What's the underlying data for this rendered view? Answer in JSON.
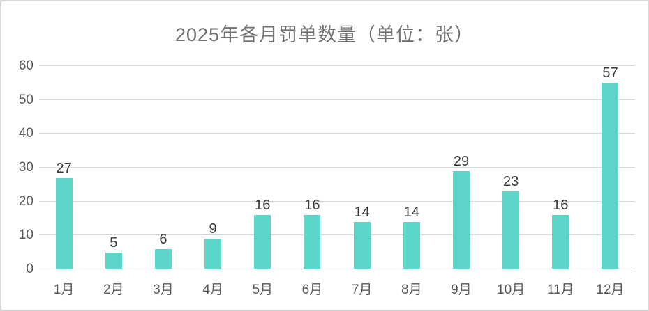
{
  "chart_data": {
    "type": "bar",
    "title": "2025年各月罚单数量（单位：张）",
    "categories": [
      "1月",
      "2月",
      "3月",
      "4月",
      "5月",
      "6月",
      "7月",
      "8月",
      "9月",
      "10月",
      "11月",
      "12月"
    ],
    "values": [
      27,
      5,
      6,
      9,
      16,
      16,
      14,
      14,
      29,
      23,
      16,
      57
    ],
    "xlabel": "",
    "ylabel": "",
    "ylim": [
      0,
      60
    ],
    "yticks": [
      0,
      10,
      20,
      30,
      40,
      50,
      60
    ],
    "grid": true,
    "legend": "none",
    "value_labels": true,
    "bar_color": "#5bd5c8"
  }
}
